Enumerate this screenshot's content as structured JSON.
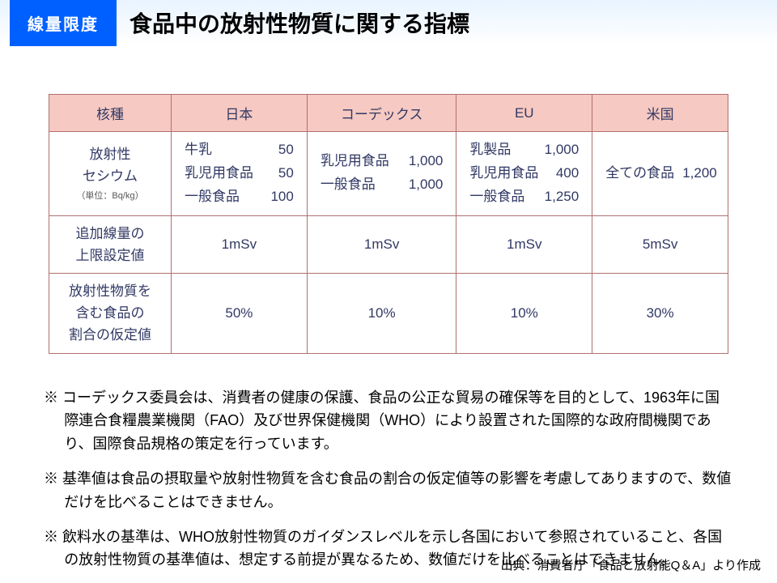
{
  "header": {
    "badge": "線量限度",
    "title": "食品中の放射性物質に関する指標"
  },
  "table": {
    "columns": [
      "核種",
      "日本",
      "コーデックス",
      "EU",
      "米国"
    ],
    "col_widths_pct": [
      18,
      20,
      22,
      20,
      20
    ],
    "header_bg": "#f6c9c2",
    "border_color": "#b07070",
    "text_color": "#313864",
    "rows": [
      {
        "head": "放射性\nセシウム",
        "unit_note": "（単位：Bq/kg）",
        "cells": [
          {
            "type": "kv",
            "items": [
              [
                "牛乳",
                "50"
              ],
              [
                "乳児用食品",
                "50"
              ],
              [
                "一般食品",
                "100"
              ]
            ]
          },
          {
            "type": "kv",
            "items": [
              [
                "乳児用食品",
                "1,000"
              ],
              [
                "一般食品",
                "1,000"
              ]
            ]
          },
          {
            "type": "kv",
            "items": [
              [
                "乳製品",
                "1,000"
              ],
              [
                "乳児用食品",
                "400"
              ],
              [
                "一般食品",
                "1,250"
              ]
            ]
          },
          {
            "type": "kv",
            "items": [
              [
                "全ての食品",
                "1,200"
              ]
            ]
          }
        ]
      },
      {
        "head": "追加線量の\n上限設定値",
        "cells": [
          {
            "type": "text",
            "value": "1mSv"
          },
          {
            "type": "text",
            "value": "1mSv"
          },
          {
            "type": "text",
            "value": "1mSv"
          },
          {
            "type": "text",
            "value": "5mSv"
          }
        ]
      },
      {
        "head": "放射性物質を\n含む食品の\n割合の仮定値",
        "cells": [
          {
            "type": "text",
            "value": "50%"
          },
          {
            "type": "text",
            "value": "10%"
          },
          {
            "type": "text",
            "value": "10%"
          },
          {
            "type": "text",
            "value": "30%"
          }
        ]
      }
    ]
  },
  "notes": [
    "※ コーデックス委員会は、消費者の健康の保護、食品の公正な貿易の確保等を目的として、1963年に国際連合食糧農業機関（FAO）及び世界保健機関（WHO）により設置された国際的な政府間機関であり、国際食品規格の策定を行っています。",
    "※ 基準値は食品の摂取量や放射性物質を含む食品の割合の仮定値等の影響を考慮してありますので、数値だけを比べることはできません。",
    "※ 飲料水の基準は、WHO放射性物質のガイダンスレベルを示し各国において参照されていること、各国の放射性物質の基準値は、想定する前提が異なるため、数値だけを比べることはできません。"
  ],
  "source": "出典：消費者庁「食品と放射能Q＆A」より作成",
  "colors": {
    "badge_bg": "#0060ff",
    "badge_fg": "#ffffff",
    "header_gradient_top": "#e8f4ff",
    "header_gradient_bottom": "#ffffff"
  }
}
